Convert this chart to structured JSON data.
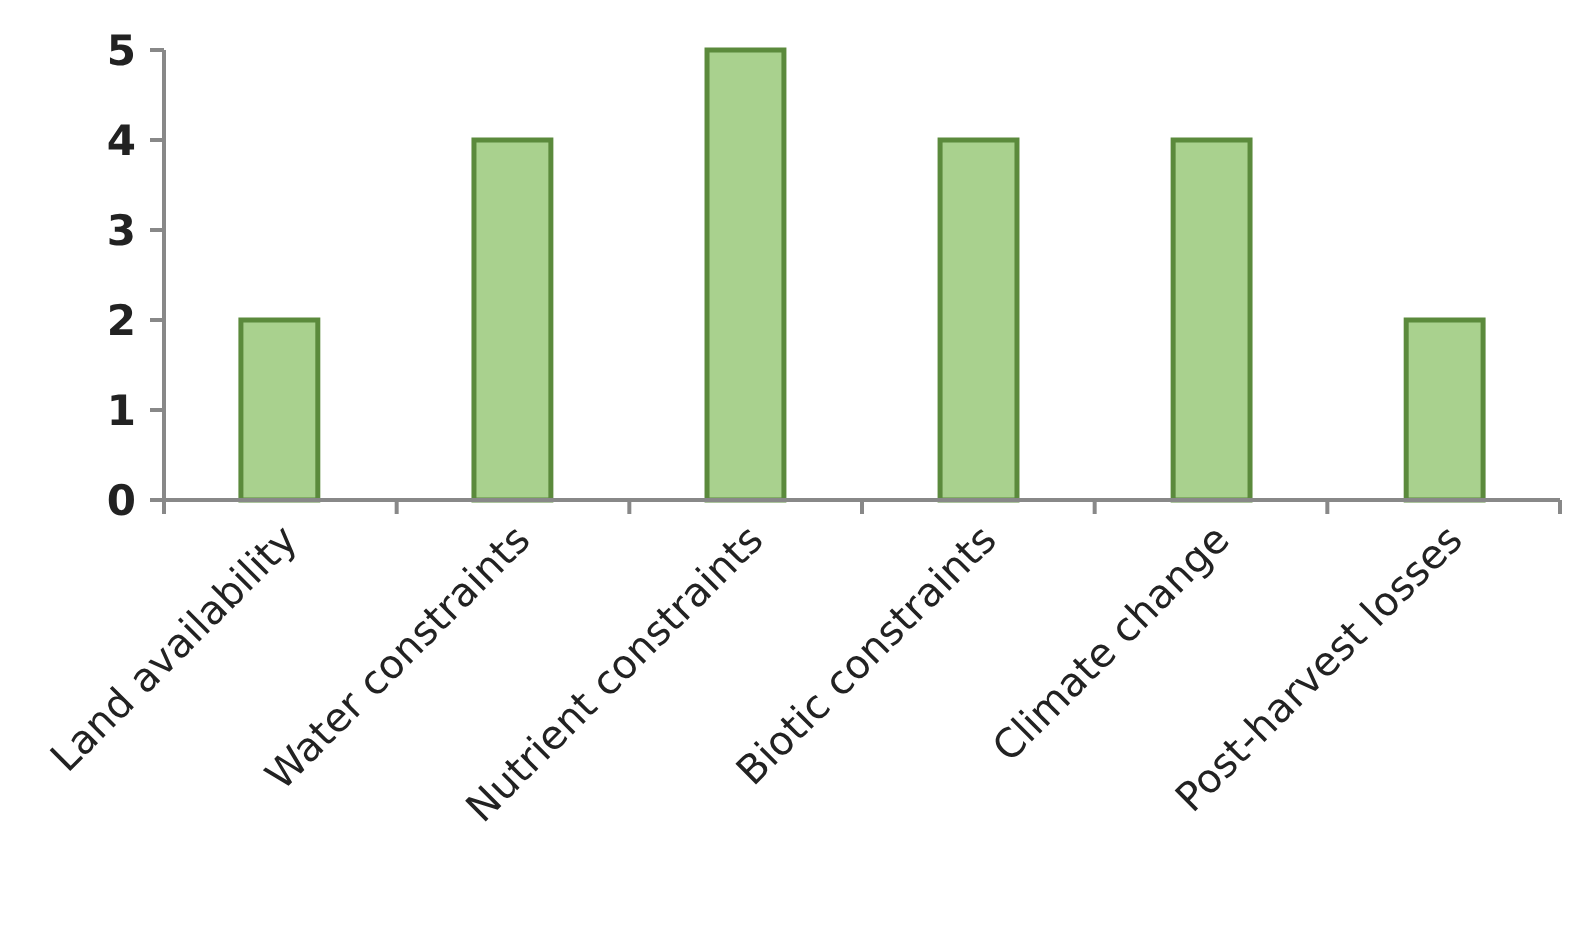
{
  "chart_data": {
    "type": "bar",
    "categories": [
      "Land availability",
      "Water constraints",
      "Nutrient constraints",
      "Biotic constraints",
      "Climate change",
      "Post-harvest losses"
    ],
    "values": [
      2,
      4,
      5,
      4,
      4,
      2
    ],
    "color": "#a9d18e",
    "ylim": [
      0,
      5
    ],
    "yticks": [
      0,
      1,
      2,
      3,
      4,
      5
    ],
    "grid": false
  }
}
